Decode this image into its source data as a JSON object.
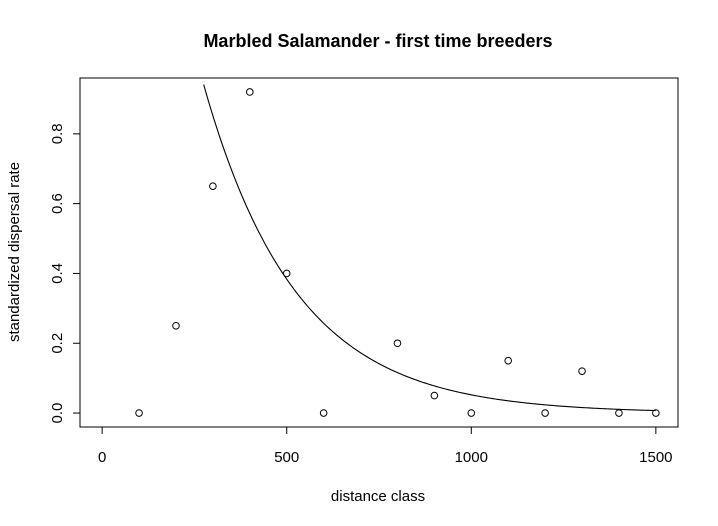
{
  "chart_data": {
    "type": "scatter",
    "title": "Marbled Salamander - first time breeders",
    "xlabel": "distance class",
    "ylabel": "standardized dispersal rate",
    "xlim": [
      -60,
      1560
    ],
    "ylim": [
      -0.04,
      0.96
    ],
    "xticks": [
      0,
      500,
      1000,
      1500
    ],
    "yticks": [
      0.0,
      0.2,
      0.4,
      0.6,
      0.8
    ],
    "xtick_labels": [
      "0",
      "500",
      "1000",
      "1500"
    ],
    "ytick_labels": [
      "0.0",
      "0.2",
      "0.4",
      "0.6",
      "0.8"
    ],
    "points": {
      "x": [
        100,
        200,
        300,
        400,
        500,
        600,
        800,
        900,
        1000,
        1100,
        1200,
        1300,
        1400,
        1500
      ],
      "y": [
        0.0,
        0.25,
        0.65,
        0.92,
        0.4,
        0.0,
        0.2,
        0.05,
        0.0,
        0.15,
        0.0,
        0.12,
        0.0,
        0.0
      ]
    },
    "fitted_curve": {
      "form": "exponential decay",
      "a": 2.82,
      "b": 0.00399
    },
    "grid": false,
    "legend": "none"
  }
}
